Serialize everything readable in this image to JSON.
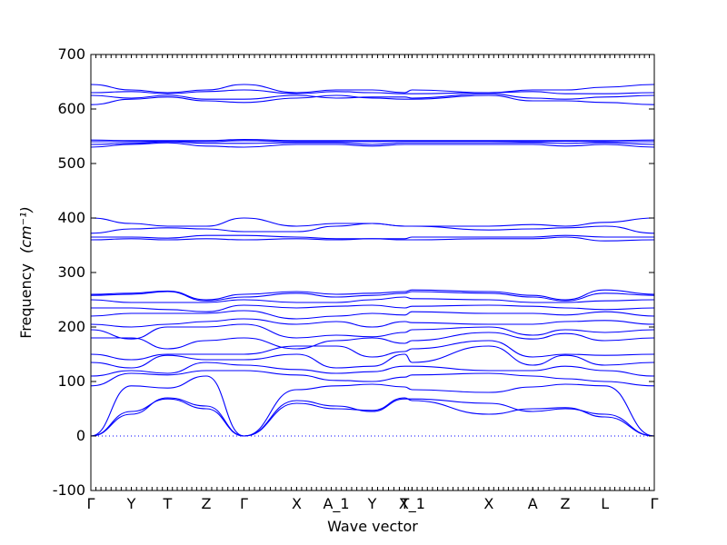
{
  "chart_data": {
    "type": "line",
    "title": "",
    "xlabel": "Wave vector",
    "ylabel": "Frequency",
    "ylabel_unit": "(cm⁻¹)",
    "ylim": [
      -100,
      700
    ],
    "yticks": [
      -100,
      0,
      100,
      200,
      300,
      400,
      500,
      600,
      700
    ],
    "grid": false,
    "high_symmetry_points": [
      {
        "label": "Γ",
        "x": 0
      },
      {
        "label": "Y",
        "x": 0.0718
      },
      {
        "label": "T",
        "x": 0.1361
      },
      {
        "label": "Z",
        "x": 0.2049
      },
      {
        "label": "Γ",
        "x": 0.2717
      },
      {
        "label": "X",
        "x": 0.3652
      },
      {
        "label": "A_1",
        "x": 0.4355
      },
      {
        "label": "Y",
        "x": 0.4993
      },
      {
        "label": "T",
        "x": 0.5571
      },
      {
        "label": "X_1",
        "x": 0.57
      },
      {
        "label": "X",
        "x": 0.7063
      },
      {
        "label": "A",
        "x": 0.7843
      },
      {
        "label": "Z",
        "x": 0.842
      },
      {
        "label": "L",
        "x": 0.9124
      },
      {
        "label": "Γ",
        "x": 1.0
      }
    ],
    "series": [
      {
        "x": [
          0,
          0.0718,
          0.1361,
          0.2049,
          0.2717,
          0.3652,
          0.4355,
          0.4993,
          0.5571,
          0.57,
          0.7063,
          0.7843,
          0.842,
          0.9124,
          1.0
        ],
        "values": [
          0,
          45,
          68,
          50,
          0,
          65,
          55,
          45,
          68,
          68,
          60,
          45,
          50,
          40,
          0
        ]
      },
      {
        "x": [
          0,
          0.0718,
          0.1361,
          0.2049,
          0.2717,
          0.3652,
          0.4355,
          0.4993,
          0.5571,
          0.57,
          0.7063,
          0.7843,
          0.842,
          0.9124,
          1.0
        ],
        "values": [
          0,
          40,
          70,
          55,
          0,
          60,
          50,
          47,
          70,
          65,
          40,
          50,
          52,
          35,
          0
        ]
      },
      {
        "x": [
          0,
          0.0718,
          0.1361,
          0.2049,
          0.2717,
          0.3652,
          0.4355,
          0.4993,
          0.5571,
          0.57,
          0.7063,
          0.7843,
          0.842,
          0.9124,
          1.0
        ],
        "values": [
          0,
          92,
          88,
          110,
          0,
          85,
          92,
          95,
          90,
          85,
          80,
          90,
          95,
          92,
          0
        ]
      },
      {
        "x": [
          0,
          0.0718,
          0.1361,
          0.2049,
          0.2717,
          0.3652,
          0.4355,
          0.4993,
          0.5571,
          0.57,
          0.7063,
          0.7843,
          0.842,
          0.9124,
          1.0
        ],
        "values": [
          92,
          115,
          112,
          120,
          120,
          112,
          102,
          100,
          108,
          112,
          115,
          110,
          105,
          100,
          92
        ]
      },
      {
        "x": [
          0,
          0.0718,
          0.1361,
          0.2049,
          0.2717,
          0.3652,
          0.4355,
          0.4993,
          0.5571,
          0.57,
          0.7063,
          0.7843,
          0.842,
          0.9124,
          1.0
        ],
        "values": [
          110,
          120,
          115,
          135,
          130,
          122,
          115,
          118,
          128,
          128,
          120,
          120,
          128,
          120,
          110
        ]
      },
      {
        "x": [
          0,
          0.0718,
          0.1361,
          0.2049,
          0.2717,
          0.3652,
          0.4355,
          0.4993,
          0.5571,
          0.57,
          0.7063,
          0.7843,
          0.842,
          0.9124,
          1.0
        ],
        "values": [
          135,
          125,
          148,
          140,
          140,
          150,
          125,
          128,
          150,
          135,
          165,
          130,
          148,
          130,
          135
        ]
      },
      {
        "x": [
          0,
          0.0718,
          0.1361,
          0.2049,
          0.2717,
          0.3652,
          0.4355,
          0.4993,
          0.5571,
          0.57,
          0.7063,
          0.7843,
          0.842,
          0.9124,
          1.0
        ],
        "values": [
          150,
          140,
          150,
          150,
          150,
          165,
          165,
          145,
          155,
          160,
          175,
          145,
          150,
          148,
          150
        ]
      },
      {
        "x": [
          0,
          0.0718,
          0.1361,
          0.2049,
          0.2717,
          0.3652,
          0.4355,
          0.4993,
          0.5571,
          0.57,
          0.7063,
          0.7843,
          0.842,
          0.9124,
          1.0
        ],
        "values": [
          180,
          180,
          160,
          175,
          180,
          160,
          175,
          180,
          170,
          175,
          190,
          178,
          188,
          175,
          180
        ]
      },
      {
        "x": [
          0,
          0.0718,
          0.1361,
          0.2049,
          0.2717,
          0.3652,
          0.4355,
          0.4993,
          0.5571,
          0.57,
          0.7063,
          0.7843,
          0.842,
          0.9124,
          1.0
        ],
        "values": [
          195,
          178,
          200,
          200,
          205,
          180,
          185,
          182,
          190,
          195,
          200,
          185,
          195,
          190,
          195
        ]
      },
      {
        "x": [
          0,
          0.0718,
          0.1361,
          0.2049,
          0.2717,
          0.3652,
          0.4355,
          0.4993,
          0.5571,
          0.57,
          0.7063,
          0.7843,
          0.842,
          0.9124,
          1.0
        ],
        "values": [
          205,
          200,
          205,
          210,
          215,
          205,
          210,
          200,
          210,
          208,
          205,
          205,
          210,
          212,
          205
        ]
      },
      {
        "x": [
          0,
          0.0718,
          0.1361,
          0.2049,
          0.2717,
          0.3652,
          0.4355,
          0.4993,
          0.5571,
          0.57,
          0.7063,
          0.7843,
          0.842,
          0.9124,
          1.0
        ],
        "values": [
          220,
          225,
          225,
          225,
          230,
          215,
          220,
          225,
          222,
          228,
          225,
          225,
          222,
          228,
          220
        ]
      },
      {
        "x": [
          0,
          0.0718,
          0.1361,
          0.2049,
          0.2717,
          0.3652,
          0.4355,
          0.4993,
          0.5571,
          0.57,
          0.7063,
          0.7843,
          0.842,
          0.9124,
          1.0
        ],
        "values": [
          235,
          235,
          232,
          228,
          240,
          235,
          238,
          240,
          235,
          238,
          240,
          238,
          235,
          232,
          235
        ]
      },
      {
        "x": [
          0,
          0.0718,
          0.1361,
          0.2049,
          0.2717,
          0.3652,
          0.4355,
          0.4993,
          0.5571,
          0.57,
          0.7063,
          0.7843,
          0.842,
          0.9124,
          1.0
        ],
        "values": [
          250,
          245,
          245,
          245,
          250,
          245,
          245,
          250,
          255,
          252,
          250,
          245,
          245,
          248,
          250
        ]
      },
      {
        "x": [
          0,
          0.0718,
          0.1361,
          0.2049,
          0.2717,
          0.3652,
          0.4355,
          0.4993,
          0.5571,
          0.57,
          0.7063,
          0.7843,
          0.842,
          0.9124,
          1.0
        ],
        "values": [
          258,
          260,
          265,
          248,
          255,
          262,
          255,
          258,
          262,
          265,
          262,
          255,
          248,
          262,
          258
        ]
      },
      {
        "x": [
          0,
          0.0718,
          0.1361,
          0.2049,
          0.2717,
          0.3652,
          0.4355,
          0.4993,
          0.5571,
          0.57,
          0.7063,
          0.7843,
          0.842,
          0.9124,
          1.0
        ],
        "values": [
          260,
          262,
          266,
          250,
          260,
          265,
          260,
          262,
          265,
          268,
          265,
          258,
          250,
          268,
          260
        ]
      },
      {
        "x": [
          0,
          0.0718,
          0.1361,
          0.2049,
          0.2717,
          0.3652,
          0.4355,
          0.4993,
          0.5571,
          0.57,
          0.7063,
          0.7843,
          0.842,
          0.9124,
          1.0
        ],
        "values": [
          360,
          362,
          360,
          362,
          360,
          362,
          360,
          362,
          360,
          360,
          362,
          362,
          365,
          358,
          360
        ]
      },
      {
        "x": [
          0,
          0.0718,
          0.1361,
          0.2049,
          0.2717,
          0.3652,
          0.4355,
          0.4993,
          0.5571,
          0.57,
          0.7063,
          0.7843,
          0.842,
          0.9124,
          1.0
        ],
        "values": [
          365,
          365,
          363,
          368,
          368,
          365,
          362,
          362,
          362,
          365,
          365,
          365,
          368,
          365,
          365
        ]
      },
      {
        "x": [
          0,
          0.0718,
          0.1361,
          0.2049,
          0.2717,
          0.3652,
          0.4355,
          0.4993,
          0.5571,
          0.57,
          0.7063,
          0.7843,
          0.842,
          0.9124,
          1.0
        ],
        "values": [
          372,
          380,
          382,
          380,
          375,
          375,
          385,
          390,
          385,
          385,
          378,
          380,
          382,
          385,
          372
        ]
      },
      {
        "x": [
          0,
          0.0718,
          0.1361,
          0.2049,
          0.2717,
          0.3652,
          0.4355,
          0.4993,
          0.5571,
          0.57,
          0.7063,
          0.7843,
          0.842,
          0.9124,
          1.0
        ],
        "values": [
          400,
          390,
          385,
          385,
          400,
          385,
          390,
          390,
          385,
          385,
          385,
          388,
          385,
          392,
          400
        ]
      },
      {
        "x": [
          0,
          0.0718,
          0.1361,
          0.2049,
          0.2717,
          0.3652,
          0.4355,
          0.4993,
          0.5571,
          0.57,
          0.7063,
          0.7843,
          0.842,
          0.9124,
          1.0
        ],
        "values": [
          530,
          535,
          538,
          532,
          530,
          535,
          535,
          532,
          535,
          535,
          535,
          535,
          532,
          535,
          530
        ]
      },
      {
        "x": [
          0,
          0.0718,
          0.1361,
          0.2049,
          0.2717,
          0.3652,
          0.4355,
          0.4993,
          0.5571,
          0.57,
          0.7063,
          0.7843,
          0.842,
          0.9124,
          1.0
        ],
        "values": [
          535,
          537,
          540,
          537,
          537,
          538,
          538,
          535,
          538,
          538,
          538,
          538,
          537,
          538,
          535
        ]
      },
      {
        "x": [
          0,
          0.0718,
          0.1361,
          0.2049,
          0.2717,
          0.3652,
          0.4355,
          0.4993,
          0.5571,
          0.57,
          0.7063,
          0.7843,
          0.842,
          0.9124,
          1.0
        ],
        "values": [
          540,
          540,
          541,
          540,
          542,
          540,
          540,
          540,
          541,
          541,
          541,
          540,
          541,
          540,
          540
        ]
      },
      {
        "x": [
          0,
          0.0718,
          0.1361,
          0.2049,
          0.2717,
          0.3652,
          0.4355,
          0.4993,
          0.5571,
          0.57,
          0.7063,
          0.7843,
          0.842,
          0.9124,
          1.0
        ],
        "values": [
          543,
          542,
          542,
          542,
          544,
          542,
          542,
          542,
          542,
          542,
          542,
          542,
          542,
          542,
          543
        ]
      },
      {
        "x": [
          0,
          0.0718,
          0.1361,
          0.2049,
          0.2717,
          0.3652,
          0.4355,
          0.4993,
          0.5571,
          0.57,
          0.7063,
          0.7843,
          0.842,
          0.9124,
          1.0
        ],
        "values": [
          608,
          618,
          622,
          615,
          612,
          620,
          625,
          620,
          618,
          618,
          625,
          615,
          615,
          612,
          608
        ]
      },
      {
        "x": [
          0,
          0.0718,
          0.1361,
          0.2049,
          0.2717,
          0.3652,
          0.4355,
          0.4993,
          0.5571,
          0.57,
          0.7063,
          0.7843,
          0.842,
          0.9124,
          1.0
        ],
        "values": [
          625,
          620,
          625,
          618,
          618,
          625,
          620,
          622,
          622,
          620,
          628,
          620,
          618,
          622,
          625
        ]
      },
      {
        "x": [
          0,
          0.0718,
          0.1361,
          0.2049,
          0.2717,
          0.3652,
          0.4355,
          0.4993,
          0.5571,
          0.57,
          0.7063,
          0.7843,
          0.842,
          0.9124,
          1.0
        ],
        "values": [
          630,
          632,
          628,
          632,
          635,
          628,
          632,
          630,
          628,
          628,
          630,
          632,
          628,
          628,
          630
        ]
      },
      {
        "x": [
          0,
          0.0718,
          0.1361,
          0.2049,
          0.2717,
          0.3652,
          0.4355,
          0.4993,
          0.5571,
          0.57,
          0.7063,
          0.7843,
          0.842,
          0.9124,
          1.0
        ],
        "values": [
          645,
          635,
          630,
          635,
          645,
          630,
          635,
          635,
          630,
          635,
          630,
          635,
          635,
          640,
          645
        ]
      }
    ]
  }
}
